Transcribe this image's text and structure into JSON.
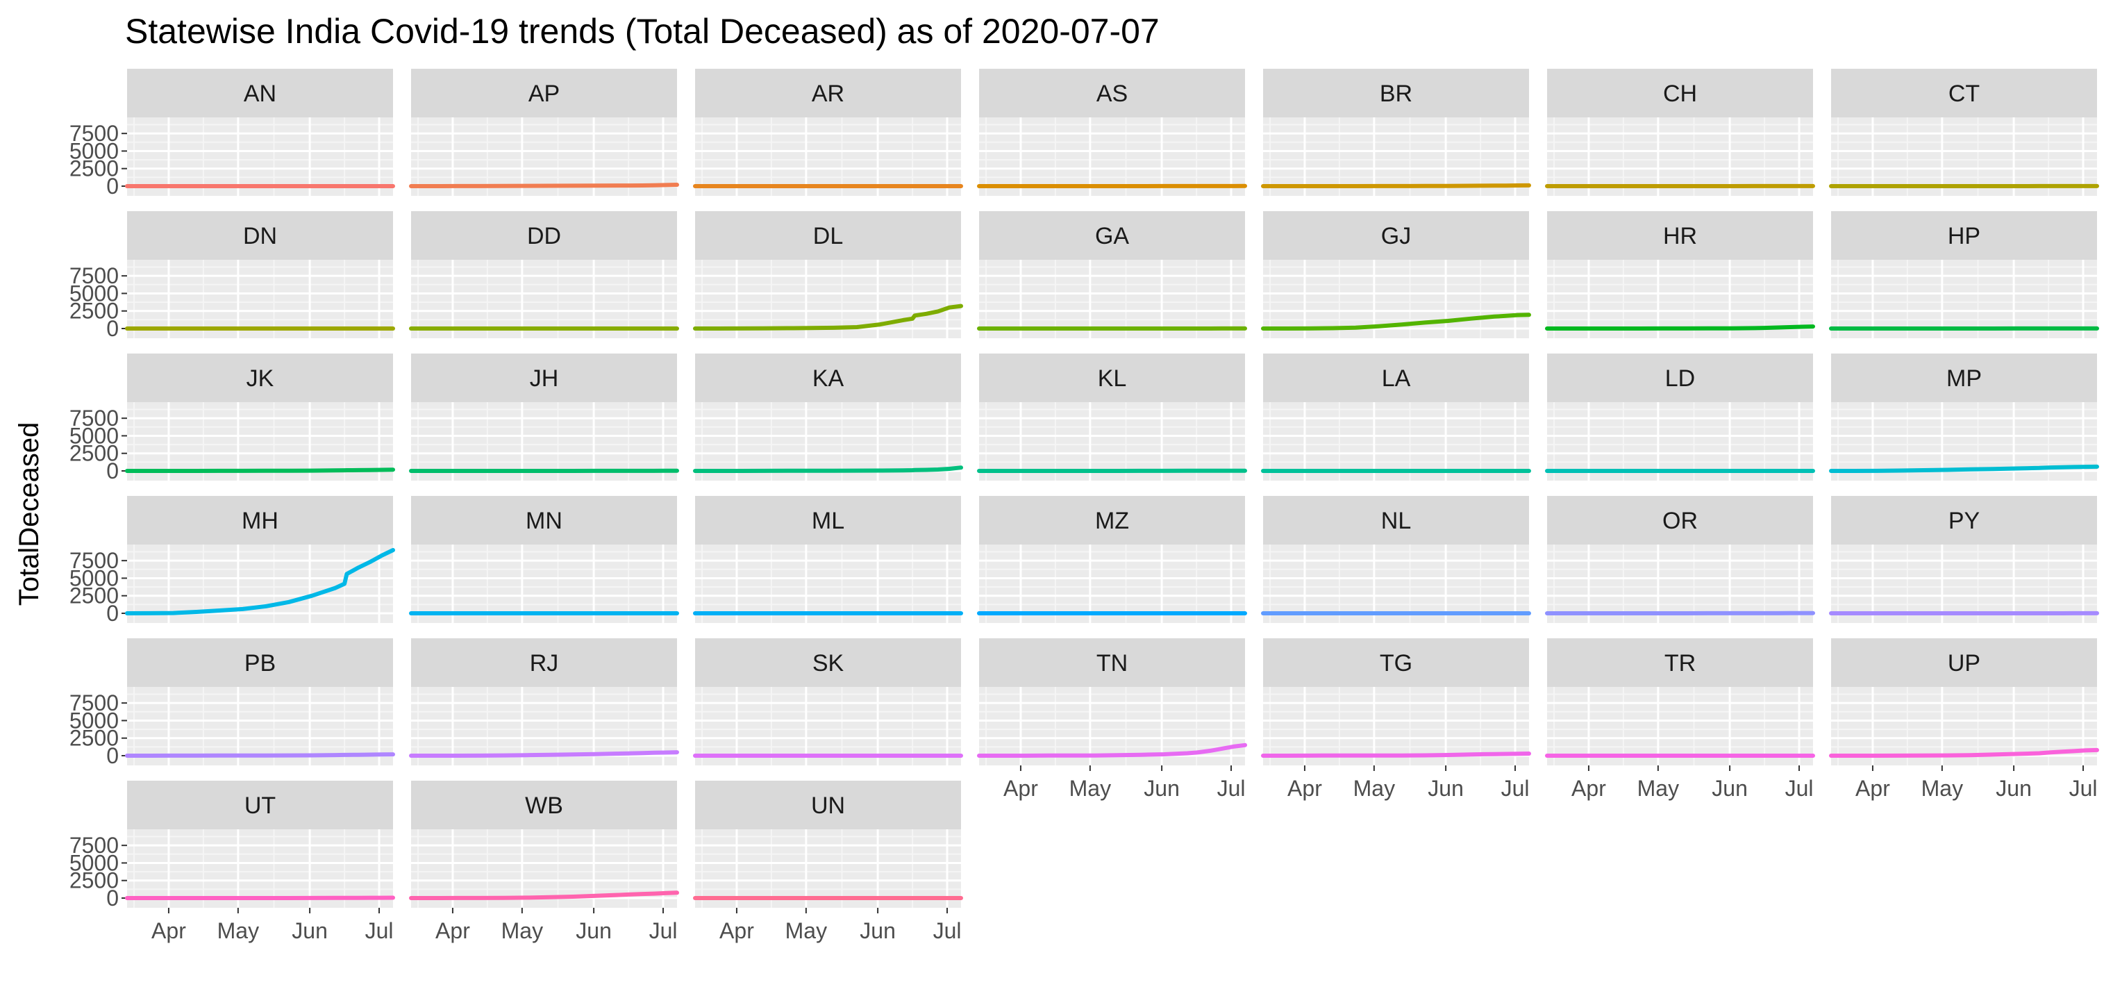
{
  "chart_data": {
    "type": "line",
    "title": "Statewise India Covid-19 trends (Total Deceased) as of 2020-07-07",
    "xlabel": "",
    "ylabel": "TotalDeceased",
    "ylim": [
      0,
      9000
    ],
    "y_ticks": [
      0,
      2500,
      5000,
      7500
    ],
    "y_tick_labels": [
      "0",
      "2500",
      "5000",
      "7500"
    ],
    "x_range": [
      "2020-03-14",
      "2020-07-07"
    ],
    "x_ticks": [
      "2020-04-01",
      "2020-05-01",
      "2020-06-01",
      "2020-07-01"
    ],
    "x_tick_labels": [
      "Apr",
      "May",
      "Jun",
      "Jul"
    ],
    "grid": true,
    "facet_layout": {
      "columns": 7,
      "rows": 6
    },
    "dates": [
      "2020-03-14",
      "2020-03-24",
      "2020-04-03",
      "2020-04-13",
      "2020-04-23",
      "2020-05-03",
      "2020-05-13",
      "2020-05-23",
      "2020-06-02",
      "2020-06-12",
      "2020-06-16",
      "2020-06-17",
      "2020-06-22",
      "2020-06-27",
      "2020-07-02",
      "2020-07-07"
    ],
    "series": [
      {
        "name": "AN",
        "color": "#F8766D",
        "values": [
          0,
          0,
          0,
          0,
          0,
          0,
          0,
          0,
          0,
          0,
          0,
          0,
          0,
          0,
          0,
          0
        ]
      },
      {
        "name": "AP",
        "color": "#F17D51",
        "values": [
          0,
          0,
          5,
          10,
          30,
          40,
          50,
          55,
          70,
          85,
          90,
          92,
          100,
          120,
          160,
          200
        ]
      },
      {
        "name": "AR",
        "color": "#E7851E",
        "values": [
          0,
          0,
          0,
          0,
          0,
          0,
          0,
          0,
          0,
          0,
          0,
          0,
          0,
          0,
          0,
          0
        ]
      },
      {
        "name": "AS",
        "color": "#DB8E00",
        "values": [
          0,
          0,
          0,
          1,
          1,
          2,
          3,
          4,
          5,
          8,
          9,
          9,
          10,
          12,
          14,
          15
        ]
      },
      {
        "name": "BR",
        "color": "#CE9700",
        "values": [
          0,
          0,
          1,
          1,
          2,
          5,
          8,
          15,
          30,
          50,
          60,
          62,
          70,
          80,
          95,
          110
        ]
      },
      {
        "name": "CH",
        "color": "#BE9C00",
        "values": [
          0,
          0,
          0,
          0,
          0,
          1,
          2,
          3,
          4,
          5,
          5,
          6,
          6,
          6,
          6,
          6
        ]
      },
      {
        "name": "CT",
        "color": "#AEA200",
        "values": [
          0,
          0,
          0,
          0,
          0,
          0,
          0,
          1,
          3,
          7,
          10,
          10,
          12,
          13,
          14,
          14
        ]
      },
      {
        "name": "DN",
        "color": "#9CA700",
        "values": [
          0,
          0,
          0,
          0,
          0,
          0,
          0,
          0,
          0,
          0,
          0,
          0,
          0,
          0,
          0,
          0
        ]
      },
      {
        "name": "DD",
        "color": "#87AC00",
        "values": [
          0,
          0,
          0,
          0,
          0,
          0,
          0,
          0,
          0,
          0,
          0,
          0,
          0,
          0,
          0,
          0
        ]
      },
      {
        "name": "DL",
        "color": "#7EAC00",
        "values": [
          0,
          2,
          6,
          24,
          50,
          65,
          110,
          200,
          580,
          1200,
          1400,
          1850,
          2100,
          2430,
          3000,
          3200
        ]
      },
      {
        "name": "GA",
        "color": "#6BB100",
        "values": [
          0,
          0,
          0,
          0,
          0,
          0,
          0,
          0,
          0,
          0,
          0,
          1,
          2,
          5,
          10,
          12
        ]
      },
      {
        "name": "GJ",
        "color": "#53B400",
        "values": [
          0,
          1,
          12,
          50,
          130,
          330,
          560,
          850,
          1090,
          1410,
          1530,
          1550,
          1700,
          1800,
          1920,
          1950
        ]
      },
      {
        "name": "HR",
        "color": "#00B81F",
        "values": [
          0,
          0,
          1,
          3,
          4,
          6,
          10,
          15,
          20,
          60,
          90,
          95,
          150,
          200,
          250,
          290
        ]
      },
      {
        "name": "HP",
        "color": "#00BA43",
        "values": [
          0,
          0,
          0,
          1,
          1,
          2,
          3,
          4,
          5,
          6,
          7,
          7,
          8,
          9,
          10,
          11
        ]
      },
      {
        "name": "JK",
        "color": "#00BC59",
        "values": [
          0,
          0,
          2,
          4,
          6,
          10,
          15,
          25,
          40,
          70,
          90,
          95,
          110,
          130,
          150,
          180
        ]
      },
      {
        "name": "JH",
        "color": "#00BD6B",
        "values": [
          0,
          0,
          1,
          2,
          3,
          3,
          3,
          4,
          6,
          8,
          9,
          9,
          10,
          12,
          15,
          18
        ]
      },
      {
        "name": "KA",
        "color": "#00BF7D",
        "values": [
          0,
          1,
          2,
          7,
          17,
          25,
          31,
          40,
          52,
          80,
          100,
          120,
          150,
          200,
          300,
          470
        ]
      },
      {
        "name": "KL",
        "color": "#00C08B",
        "values": [
          0,
          0,
          2,
          3,
          3,
          4,
          4,
          5,
          10,
          18,
          20,
          21,
          22,
          24,
          26,
          29
        ]
      },
      {
        "name": "LA",
        "color": "#00C19A",
        "values": [
          0,
          0,
          0,
          0,
          0,
          0,
          0,
          0,
          0,
          1,
          1,
          1,
          1,
          1,
          1,
          1
        ]
      },
      {
        "name": "LD",
        "color": "#00C0B5",
        "values": [
          0,
          0,
          0,
          0,
          0,
          0,
          0,
          0,
          0,
          0,
          0,
          0,
          0,
          0,
          0,
          0
        ]
      },
      {
        "name": "MP",
        "color": "#00BDD2",
        "values": [
          0,
          0,
          10,
          50,
          100,
          150,
          220,
          280,
          350,
          420,
          470,
          480,
          510,
          550,
          580,
          600
        ]
      },
      {
        "name": "MH",
        "color": "#00B8E7",
        "values": [
          0,
          5,
          40,
          200,
          400,
          600,
          1000,
          1600,
          2500,
          3600,
          4200,
          5600,
          6500,
          7300,
          8200,
          9000
        ]
      },
      {
        "name": "MN",
        "color": "#00B3F1",
        "values": [
          0,
          0,
          0,
          0,
          0,
          0,
          0,
          0,
          0,
          0,
          0,
          0,
          0,
          0,
          0,
          0
        ]
      },
      {
        "name": "ML",
        "color": "#00AFF6",
        "values": [
          0,
          0,
          0,
          1,
          1,
          1,
          1,
          1,
          1,
          1,
          1,
          1,
          1,
          1,
          1,
          1
        ]
      },
      {
        "name": "MZ",
        "color": "#00A9FF",
        "values": [
          0,
          0,
          0,
          0,
          0,
          0,
          0,
          0,
          0,
          0,
          0,
          0,
          0,
          0,
          0,
          0
        ]
      },
      {
        "name": "NL",
        "color": "#619CFF",
        "values": [
          0,
          0,
          0,
          0,
          0,
          0,
          0,
          0,
          0,
          0,
          0,
          0,
          0,
          0,
          0,
          0
        ]
      },
      {
        "name": "OR",
        "color": "#8F91FF",
        "values": [
          0,
          0,
          1,
          1,
          1,
          2,
          3,
          7,
          9,
          11,
          12,
          12,
          14,
          16,
          20,
          25
        ]
      },
      {
        "name": "PY",
        "color": "#A58AFF",
        "values": [
          0,
          0,
          0,
          0,
          0,
          0,
          0,
          0,
          0,
          1,
          2,
          2,
          4,
          7,
          10,
          12
        ]
      },
      {
        "name": "PB",
        "color": "#AF86FF",
        "values": [
          0,
          1,
          5,
          12,
          17,
          21,
          32,
          40,
          48,
          90,
          105,
          110,
          130,
          150,
          175,
          190
        ]
      },
      {
        "name": "RJ",
        "color": "#C77CFF",
        "values": [
          0,
          0,
          2,
          10,
          40,
          80,
          130,
          180,
          220,
          300,
          330,
          340,
          380,
          420,
          450,
          480
        ]
      },
      {
        "name": "SK",
        "color": "#DE71F9",
        "values": [
          0,
          0,
          0,
          0,
          0,
          0,
          0,
          0,
          0,
          0,
          0,
          0,
          0,
          0,
          0,
          0
        ]
      },
      {
        "name": "TN",
        "color": "#E76BF3",
        "values": [
          0,
          1,
          3,
          15,
          24,
          30,
          80,
          130,
          200,
          350,
          450,
          480,
          700,
          1000,
          1300,
          1500
        ]
      },
      {
        "name": "TG",
        "color": "#F066EA",
        "values": [
          0,
          1,
          8,
          25,
          28,
          29,
          34,
          53,
          100,
          180,
          200,
          210,
          230,
          250,
          280,
          300
        ]
      },
      {
        "name": "TR",
        "color": "#F664E5",
        "values": [
          0,
          0,
          0,
          0,
          0,
          0,
          0,
          0,
          0,
          0,
          1,
          1,
          1,
          1,
          1,
          1
        ]
      },
      {
        "name": "UP",
        "color": "#FA62DB",
        "values": [
          0,
          0,
          2,
          14,
          25,
          40,
          80,
          160,
          250,
          350,
          450,
          470,
          560,
          650,
          750,
          800
        ]
      },
      {
        "name": "UT",
        "color": "#FF61C3",
        "values": [
          0,
          0,
          0,
          0,
          0,
          1,
          1,
          2,
          6,
          20,
          25,
          26,
          30,
          35,
          40,
          45
        ]
      },
      {
        "name": "WB",
        "color": "#FF64AE",
        "values": [
          0,
          1,
          5,
          10,
          20,
          60,
          120,
          200,
          330,
          450,
          500,
          510,
          580,
          630,
          700,
          760
        ]
      },
      {
        "name": "UN",
        "color": "#FF6C91",
        "values": [
          0,
          0,
          0,
          0,
          0,
          0,
          0,
          0,
          0,
          0,
          0,
          0,
          0,
          0,
          0,
          0
        ]
      }
    ]
  }
}
